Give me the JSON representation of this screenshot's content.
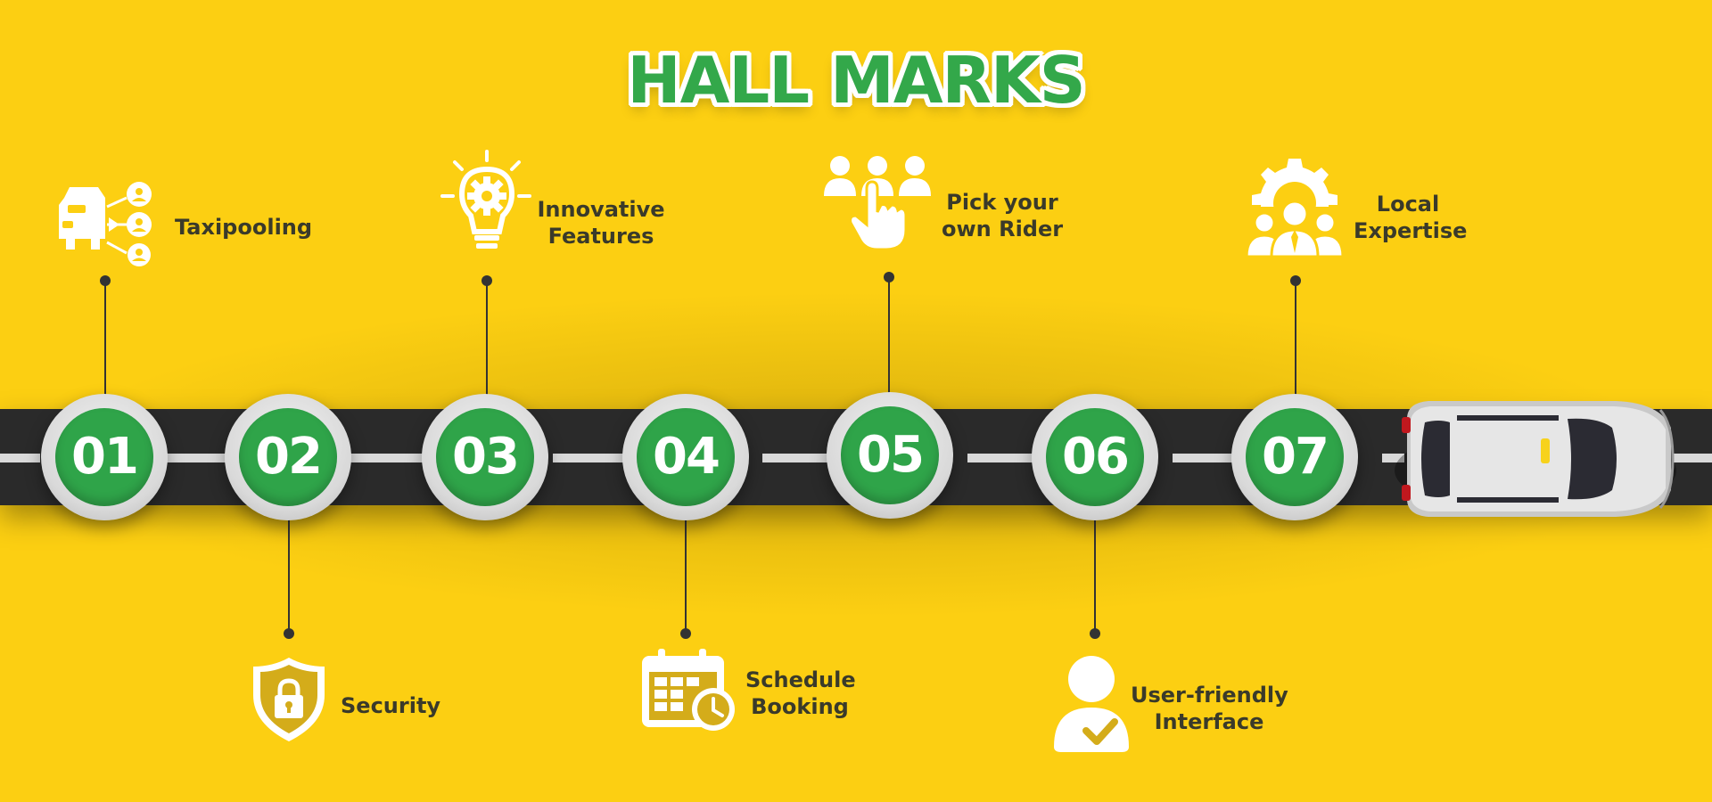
{
  "title": "HALL MARKS",
  "colors": {
    "background": "#fccf12",
    "accent_green": "#2fa449",
    "road": "#2a2a2a",
    "text": "#3a3a2a"
  },
  "steps": [
    {
      "number": "01",
      "label_lines": [
        "Taxipooling"
      ],
      "icon": "taxi-pool-icon",
      "position": "top"
    },
    {
      "number": "02",
      "label_lines": [
        "Security"
      ],
      "icon": "shield-lock-icon",
      "position": "bottom"
    },
    {
      "number": "03",
      "label_lines": [
        "Innovative",
        "Features"
      ],
      "icon": "lightbulb-gear-icon",
      "position": "top"
    },
    {
      "number": "04",
      "label_lines": [
        "Schedule",
        "Booking"
      ],
      "icon": "calendar-clock-icon",
      "position": "bottom"
    },
    {
      "number": "05",
      "label_lines": [
        "Pick your",
        "own Rider"
      ],
      "icon": "hand-select-person-icon",
      "position": "top"
    },
    {
      "number": "06",
      "label_lines": [
        "User-friendly",
        "Interface"
      ],
      "icon": "user-check-icon",
      "position": "bottom"
    },
    {
      "number": "07",
      "label_lines": [
        "Local",
        "Expertise"
      ],
      "icon": "gear-team-icon",
      "position": "top"
    }
  ],
  "vehicle": "taxi-car-icon"
}
